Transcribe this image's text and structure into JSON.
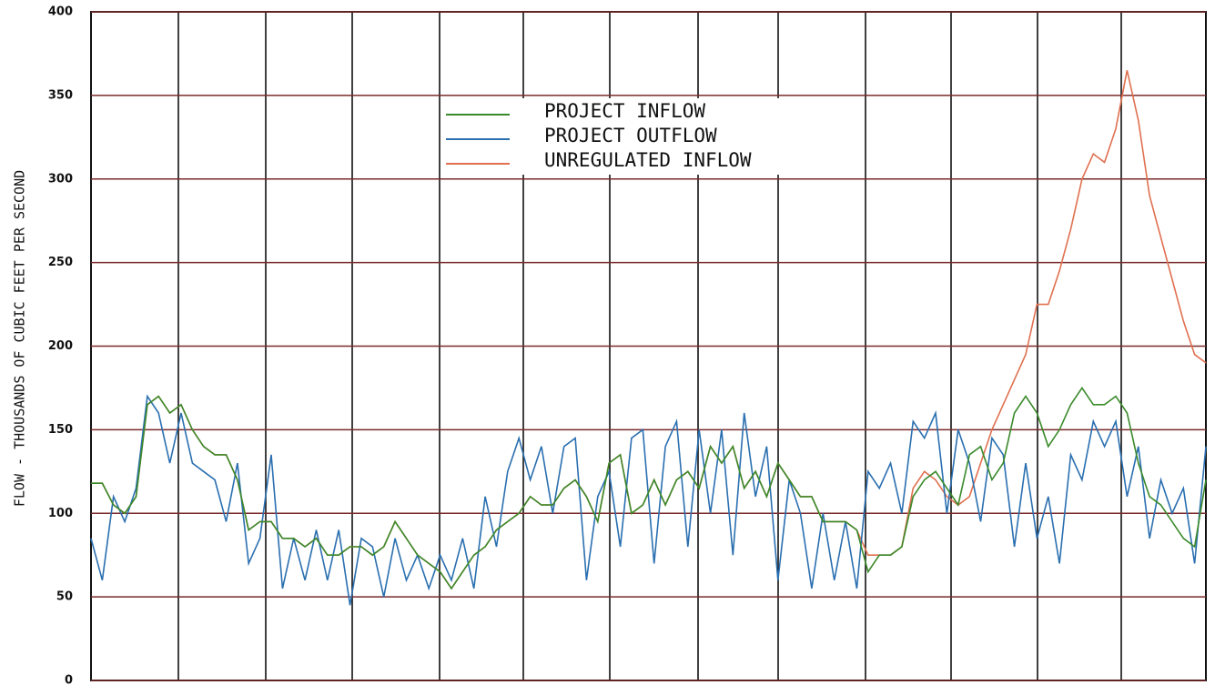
{
  "chart_data": {
    "type": "line",
    "y_label": "FLOW - THOUSANDS OF CUBIC FEET PER SECOND",
    "ylim": [
      0,
      400
    ],
    "yticks": [
      0,
      50,
      100,
      150,
      200,
      250,
      300,
      350,
      400
    ],
    "grid": true,
    "series": [
      {
        "name": "UNREGULATED INFLOW",
        "color": "#e07050",
        "values": [
          118,
          118,
          105,
          100,
          110,
          165,
          170,
          160,
          165,
          150,
          140,
          135,
          135,
          120,
          90,
          95,
          95,
          85,
          85,
          80,
          85,
          75,
          75,
          80,
          80,
          75,
          80,
          95,
          85,
          75,
          70,
          65,
          55,
          65,
          75,
          80,
          90,
          95,
          100,
          110,
          105,
          105,
          115,
          120,
          110,
          95,
          130,
          135,
          100,
          105,
          120,
          105,
          120,
          125,
          115,
          140,
          130,
          140,
          115,
          125,
          110,
          130,
          120,
          110,
          110,
          95,
          95,
          95,
          90,
          75,
          75,
          75,
          80,
          115,
          125,
          120,
          110,
          105,
          110,
          130,
          150,
          165,
          180,
          195,
          225,
          225,
          245,
          270,
          300,
          315,
          310,
          330,
          365,
          335,
          290,
          265,
          240,
          215,
          195,
          190
        ]
      },
      {
        "name": "PROJECT OUTFLOW",
        "color": "#2a6fb0",
        "values": [
          85,
          60,
          110,
          95,
          115,
          170,
          160,
          130,
          160,
          130,
          125,
          120,
          95,
          130,
          70,
          85,
          135,
          55,
          85,
          60,
          90,
          60,
          90,
          45,
          85,
          80,
          50,
          85,
          60,
          75,
          55,
          75,
          60,
          85,
          55,
          110,
          80,
          125,
          145,
          120,
          140,
          100,
          140,
          145,
          60,
          110,
          125,
          80,
          145,
          150,
          70,
          140,
          155,
          80,
          150,
          100,
          150,
          75,
          160,
          110,
          140,
          60,
          120,
          100,
          55,
          100,
          60,
          95,
          55,
          125,
          115,
          130,
          100,
          155,
          145,
          160,
          100,
          150,
          130,
          95,
          145,
          135,
          80,
          130,
          85,
          110,
          70,
          135,
          120,
          155,
          140,
          155,
          110,
          140,
          85,
          120,
          100,
          115,
          70,
          140
        ]
      },
      {
        "name": "PROJECT INFLOW",
        "color": "#3a8a2a",
        "values": [
          118,
          118,
          105,
          100,
          110,
          165,
          170,
          160,
          165,
          150,
          140,
          135,
          135,
          120,
          90,
          95,
          95,
          85,
          85,
          80,
          85,
          75,
          75,
          80,
          80,
          75,
          80,
          95,
          85,
          75,
          70,
          65,
          55,
          65,
          75,
          80,
          90,
          95,
          100,
          110,
          105,
          105,
          115,
          120,
          110,
          95,
          130,
          135,
          100,
          105,
          120,
          105,
          120,
          125,
          115,
          140,
          130,
          140,
          115,
          125,
          110,
          130,
          120,
          110,
          110,
          95,
          95,
          95,
          90,
          65,
          75,
          75,
          80,
          110,
          120,
          125,
          115,
          105,
          135,
          140,
          120,
          130,
          160,
          170,
          160,
          140,
          150,
          165,
          175,
          165,
          165,
          170,
          160,
          130,
          110,
          105,
          95,
          85,
          80,
          120
        ]
      }
    ]
  }
}
